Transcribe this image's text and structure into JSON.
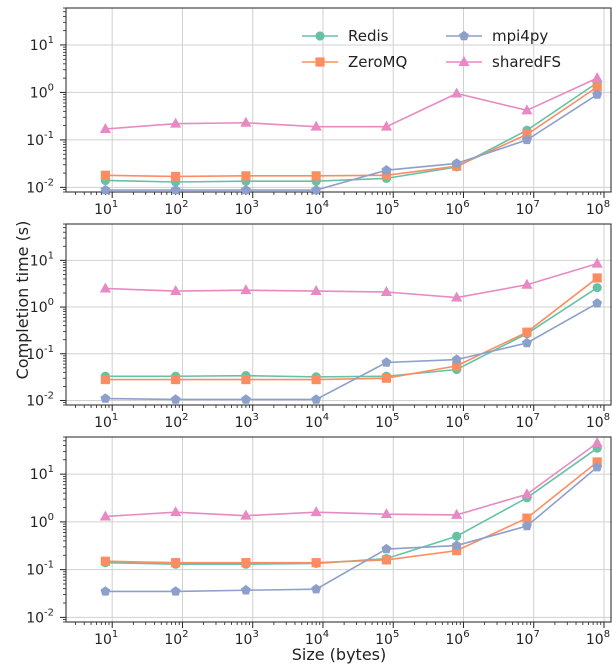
{
  "chart_data": {
    "type": "line",
    "xlabel": "Size (bytes)",
    "ylabel": "Completion time (s)",
    "x_scale": "log",
    "y_scale": "log",
    "grid": true,
    "legend_position": "top-right",
    "x": [
      8,
      80,
      800,
      8000,
      80000,
      800000,
      8000000,
      80000000
    ],
    "x_ticks": [
      {
        "base": "10",
        "exp": "1"
      },
      {
        "base": "10",
        "exp": "2"
      },
      {
        "base": "10",
        "exp": "3"
      },
      {
        "base": "10",
        "exp": "4"
      },
      {
        "base": "10",
        "exp": "5"
      },
      {
        "base": "10",
        "exp": "6"
      },
      {
        "base": "10",
        "exp": "7"
      },
      {
        "base": "10",
        "exp": "8"
      }
    ],
    "y_ticks": [
      {
        "base": "10",
        "exp": "-2"
      },
      {
        "base": "10",
        "exp": "-1"
      },
      {
        "base": "10",
        "exp": "0"
      },
      {
        "base": "10",
        "exp": "1"
      }
    ],
    "legend": [
      {
        "name": "Redis",
        "color": "#66c2a5",
        "marker": "circle"
      },
      {
        "name": "ZeroMQ",
        "color": "#fc8d62",
        "marker": "square"
      },
      {
        "name": "mpi4py",
        "color": "#8da0cb",
        "marker": "pentagon"
      },
      {
        "name": "sharedFS",
        "color": "#e78ac3",
        "marker": "triangle"
      }
    ],
    "panels": [
      {
        "ylim": [
          0.008,
          60
        ],
        "series": [
          {
            "name": "Redis",
            "values": [
              0.014,
              0.013,
              0.0135,
              0.0135,
              0.0155,
              0.027,
              0.16,
              1.6
            ]
          },
          {
            "name": "ZeroMQ",
            "values": [
              0.018,
              0.017,
              0.0175,
              0.0175,
              0.018,
              0.028,
              0.13,
              1.3
            ]
          },
          {
            "name": "mpi4py",
            "values": [
              0.0088,
              0.0088,
              0.0088,
              0.0088,
              0.023,
              0.032,
              0.1,
              0.9
            ]
          },
          {
            "name": "sharedFS",
            "values": [
              0.17,
              0.22,
              0.23,
              0.19,
              0.19,
              0.95,
              0.42,
              2.0
            ]
          }
        ]
      },
      {
        "ylim": [
          0.008,
          60
        ],
        "series": [
          {
            "name": "Redis",
            "values": [
              0.033,
              0.033,
              0.034,
              0.032,
              0.033,
              0.046,
              0.27,
              2.6
            ]
          },
          {
            "name": "ZeroMQ",
            "values": [
              0.028,
              0.028,
              0.028,
              0.028,
              0.03,
              0.055,
              0.29,
              4.2
            ]
          },
          {
            "name": "mpi4py",
            "values": [
              0.011,
              0.0105,
              0.0105,
              0.0105,
              0.065,
              0.075,
              0.17,
              1.2
            ]
          },
          {
            "name": "sharedFS",
            "values": [
              2.5,
              2.2,
              2.3,
              2.2,
              2.1,
              1.6,
              3.0,
              8.5
            ]
          }
        ]
      },
      {
        "ylim": [
          0.008,
          60
        ],
        "series": [
          {
            "name": "Redis",
            "values": [
              0.14,
              0.13,
              0.13,
              0.135,
              0.17,
              0.5,
              3.2,
              35
            ]
          },
          {
            "name": "ZeroMQ",
            "values": [
              0.15,
              0.14,
              0.14,
              0.14,
              0.16,
              0.25,
              1.2,
              18
            ]
          },
          {
            "name": "mpi4py",
            "values": [
              0.035,
              0.035,
              0.037,
              0.039,
              0.27,
              0.32,
              0.82,
              14
            ]
          },
          {
            "name": "sharedFS",
            "values": [
              1.3,
              1.6,
              1.35,
              1.6,
              1.45,
              1.4,
              3.8,
              45
            ]
          }
        ]
      }
    ]
  }
}
